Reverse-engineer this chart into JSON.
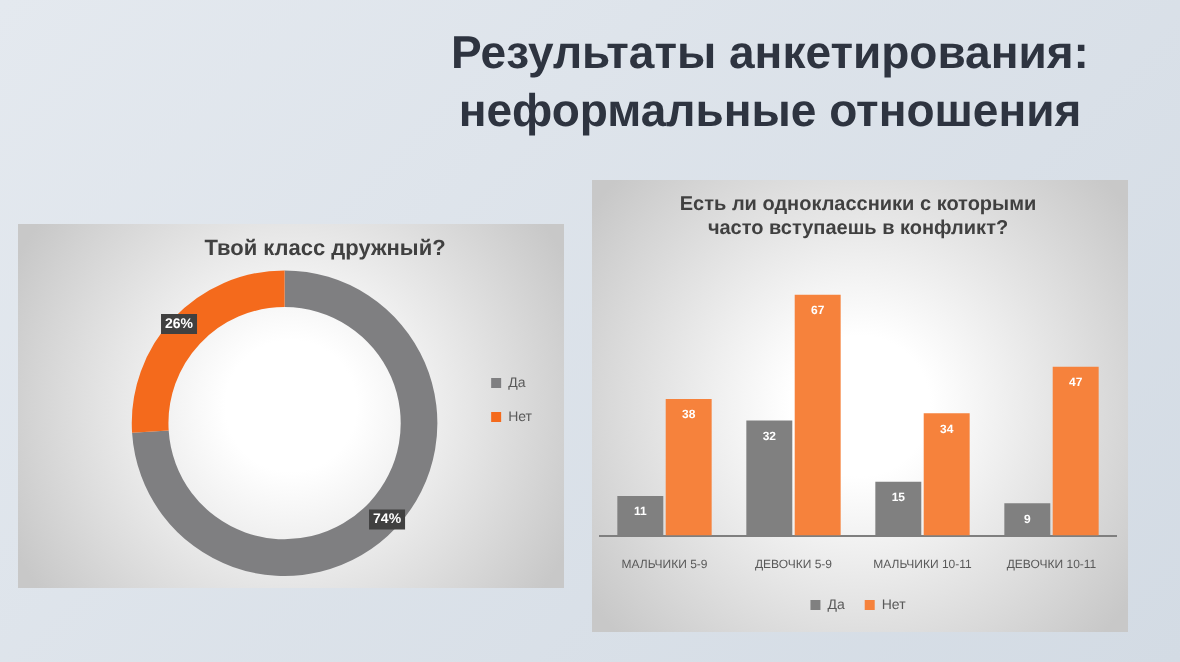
{
  "chart_data": [
    {
      "type": "donut",
      "title": "Твой класс дружный?",
      "categories": [
        "Да",
        "Нет"
      ],
      "values": [
        74,
        26
      ],
      "colors": [
        "#7f7f81",
        "#f46a1c"
      ],
      "value_labels": [
        "74%",
        "26%"
      ],
      "legend": "right",
      "annotations": [
        "Результаты анкетирования: неформальные отношения"
      ]
    },
    {
      "type": "bar",
      "title": "Есть ли одноклассники с которыми часто вступаешь в конфликт?",
      "categories": [
        "МАЛЬЧИКИ 5-9",
        "ДЕВОЧКИ 5-9",
        "МАЛЬЧИКИ 10-11",
        "ДЕВОЧКИ 10-11"
      ],
      "series": [
        {
          "name": "Да",
          "color": "#808080",
          "values": [
            11,
            32,
            15,
            9
          ]
        },
        {
          "name": "Нет",
          "color": "#f6823c",
          "values": [
            38,
            67,
            34,
            47
          ]
        }
      ],
      "data_labels": true,
      "legend": "bottom"
    }
  ]
}
